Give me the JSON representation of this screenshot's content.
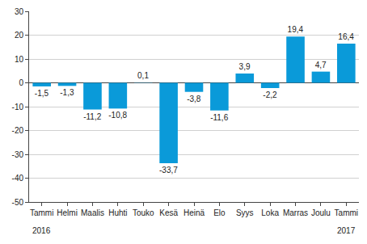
{
  "chart_data": {
    "type": "bar",
    "categories": [
      "Tammi",
      "Helmi",
      "Maalis",
      "Huhti",
      "Touko",
      "Kesä",
      "Heinä",
      "Elo",
      "Syys",
      "Loka",
      "Marras",
      "Joulu",
      "Tammi"
    ],
    "values": [
      -1.5,
      -1.3,
      -11.2,
      -10.8,
      0.1,
      -33.7,
      -3.8,
      -11.6,
      3.9,
      -2.2,
      19.4,
      4.7,
      16.4
    ],
    "value_labels": [
      "-1,5",
      "-1,3",
      "-11,2",
      "-10,8",
      "0,1",
      "-33,7",
      "-3,8",
      "-11,6",
      "3,9",
      "-2,2",
      "19,4",
      "4,7",
      "16,4"
    ],
    "data_labels": true,
    "color": "#0a9ad9",
    "ylim": [
      -50,
      30
    ],
    "yticks": [
      -50,
      -40,
      -30,
      -20,
      -10,
      0,
      10,
      20,
      30
    ],
    "grid": true,
    "annotations": [
      {
        "category_index": 0,
        "text": "2016"
      },
      {
        "category_index": 12,
        "text": "2017"
      }
    ]
  }
}
